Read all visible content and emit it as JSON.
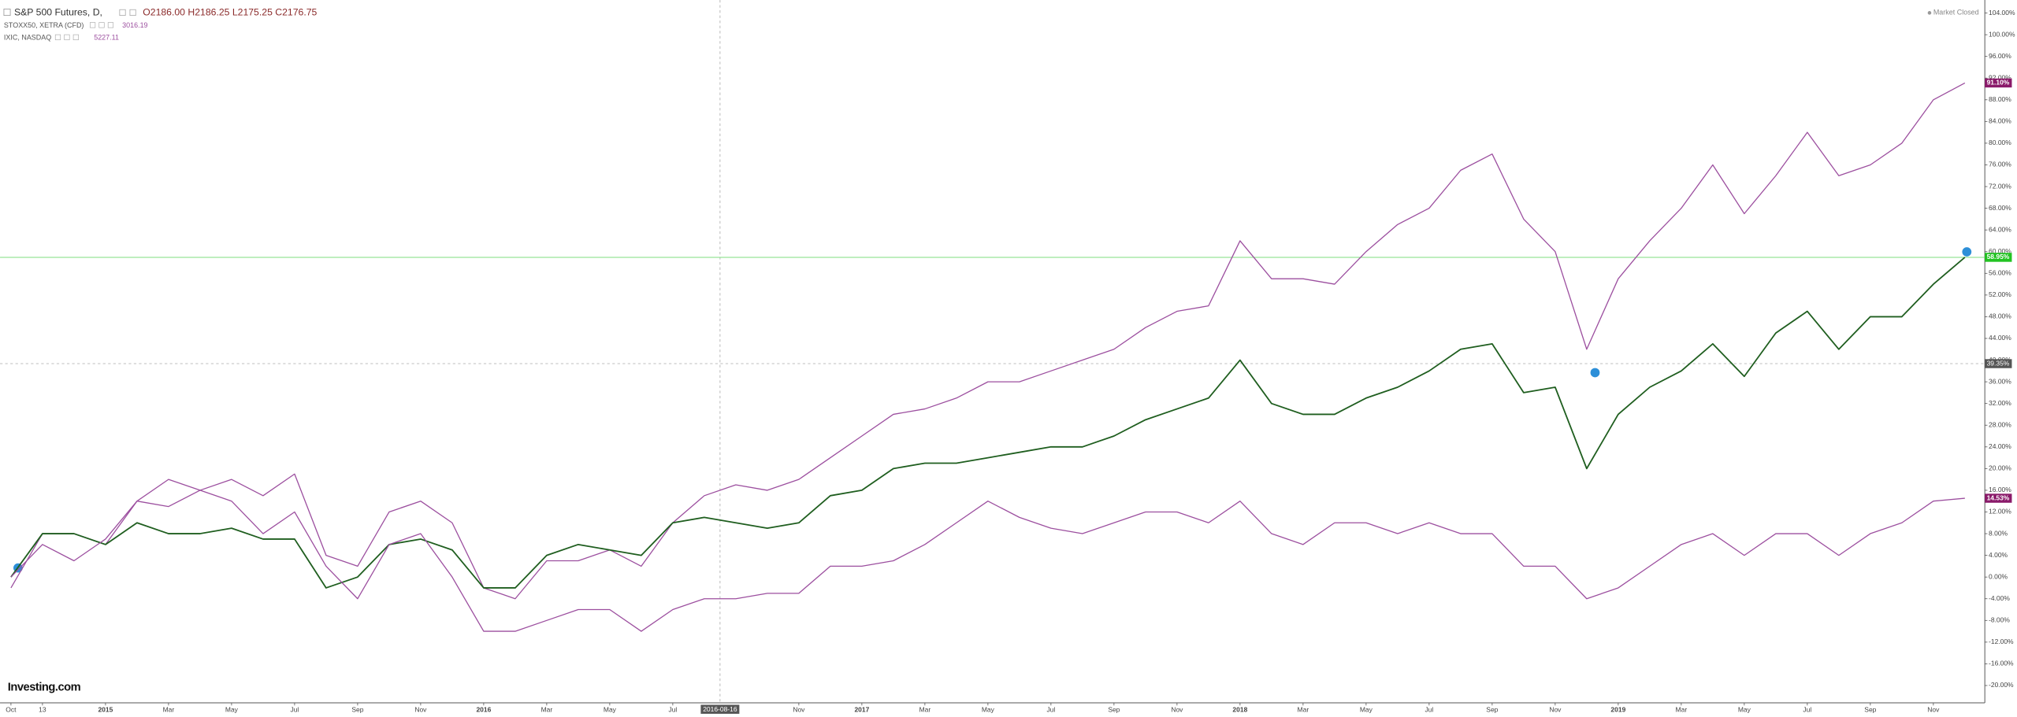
{
  "chart_data": {
    "type": "line",
    "legend": [
      {
        "name": "S&P 500 Futures, D,",
        "quote": "O2186.00 H2186.25 L2175.25 C2176.75"
      },
      {
        "name": "STOXX50, XETRA (CFD)",
        "quote": "3016.19"
      },
      {
        "name": "IXIC, NASDAQ",
        "quote": "5227.11"
      }
    ],
    "status": "Market Closed",
    "watermark": "Investing.com",
    "x": [
      "2014-10",
      "2014-11",
      "2014-12",
      "2015-01",
      "2015-02",
      "2015-03",
      "2015-04",
      "2015-05",
      "2015-06",
      "2015-07",
      "2015-08",
      "2015-09",
      "2015-10",
      "2015-11",
      "2015-12",
      "2016-01",
      "2016-02",
      "2016-03",
      "2016-04",
      "2016-05",
      "2016-06",
      "2016-07",
      "2016-08",
      "2016-09",
      "2016-10",
      "2016-11",
      "2016-12",
      "2017-01",
      "2017-02",
      "2017-03",
      "2017-04",
      "2017-05",
      "2017-06",
      "2017-07",
      "2017-08",
      "2017-09",
      "2017-10",
      "2017-11",
      "2017-12",
      "2018-01",
      "2018-02",
      "2018-03",
      "2018-04",
      "2018-05",
      "2018-06",
      "2018-07",
      "2018-08",
      "2018-09",
      "2018-10",
      "2018-11",
      "2018-12",
      "2019-01",
      "2019-02",
      "2019-03",
      "2019-04",
      "2019-05",
      "2019-06",
      "2019-07",
      "2019-08",
      "2019-09",
      "2019-10",
      "2019-11",
      "2019-12"
    ],
    "series": [
      {
        "name": "IXIC, NASDAQ",
        "color": "#9c4f9f",
        "last_value_label": "91.10%",
        "label_color": "#8a1a6a",
        "values": [
          -2,
          8,
          8,
          6,
          14,
          13,
          16,
          18,
          15,
          19,
          4,
          2,
          12,
          14,
          10,
          -2,
          -4,
          3,
          3,
          5,
          2,
          10,
          15,
          17,
          16,
          18,
          22,
          26,
          30,
          31,
          33,
          36,
          36,
          38,
          40,
          42,
          46,
          49,
          50,
          62,
          55,
          55,
          54,
          60,
          65,
          68,
          75,
          78,
          66,
          60,
          42,
          55,
          62,
          68,
          76,
          67,
          74,
          82,
          74,
          76,
          80,
          88,
          91.1
        ]
      },
      {
        "name": "S&P 500 Futures, D,",
        "color": "#1f5e1f",
        "last_value_label": "58.95%",
        "label_color": "#22c322",
        "values": [
          0,
          8,
          8,
          6,
          10,
          8,
          8,
          9,
          7,
          7,
          -2,
          0,
          6,
          7,
          5,
          -2,
          -2,
          4,
          6,
          5,
          4,
          10,
          11,
          10,
          9,
          10,
          15,
          16,
          20,
          21,
          21,
          22,
          23,
          24,
          24,
          26,
          29,
          31,
          33,
          40,
          32,
          30,
          30,
          33,
          35,
          38,
          42,
          43,
          34,
          35,
          20,
          30,
          35,
          38,
          43,
          37,
          45,
          49,
          42,
          48,
          48,
          54,
          58.95
        ]
      },
      {
        "name": "STOXX50, XETRA (CFD)",
        "color": "#9c4f9f",
        "last_value_label": "14.53%",
        "label_color": "#8a1a6a",
        "values": [
          0,
          6,
          3,
          7,
          14,
          18,
          16,
          14,
          8,
          12,
          2,
          -4,
          6,
          8,
          0,
          -10,
          -10,
          -8,
          -6,
          -6,
          -10,
          -6,
          -4,
          -4,
          -3,
          -3,
          2,
          2,
          3,
          6,
          10,
          14,
          11,
          9,
          8,
          10,
          12,
          12,
          10,
          14,
          8,
          6,
          10,
          10,
          8,
          10,
          8,
          8,
          2,
          2,
          -4,
          -2,
          2,
          6,
          8,
          4,
          8,
          8,
          4,
          8,
          10,
          14,
          14.53
        ]
      }
    ],
    "xticks": [
      {
        "value": "2014-10",
        "label": "Oct"
      },
      {
        "value": "2014-11",
        "label": "13"
      },
      {
        "value": "2015-01",
        "label": "2015"
      },
      {
        "value": "2015-03",
        "label": "Mar"
      },
      {
        "value": "2015-05",
        "label": "May"
      },
      {
        "value": "2015-07",
        "label": "Jul"
      },
      {
        "value": "2015-09",
        "label": "Sep"
      },
      {
        "value": "2015-11",
        "label": "Nov"
      },
      {
        "value": "2016-01",
        "label": "2016"
      },
      {
        "value": "2016-03",
        "label": "Mar"
      },
      {
        "value": "2016-05",
        "label": "May"
      },
      {
        "value": "2016-07",
        "label": "Jul"
      },
      {
        "value": "2016-11",
        "label": "Nov"
      },
      {
        "value": "2017-01",
        "label": "2017"
      },
      {
        "value": "2017-03",
        "label": "Mar"
      },
      {
        "value": "2017-05",
        "label": "May"
      },
      {
        "value": "2017-07",
        "label": "Jul"
      },
      {
        "value": "2017-09",
        "label": "Sep"
      },
      {
        "value": "2017-11",
        "label": "Nov"
      },
      {
        "value": "2018-01",
        "label": "2018"
      },
      {
        "value": "2018-03",
        "label": "Mar"
      },
      {
        "value": "2018-05",
        "label": "May"
      },
      {
        "value": "2018-07",
        "label": "Jul"
      },
      {
        "value": "2018-09",
        "label": "Sep"
      },
      {
        "value": "2018-11",
        "label": "Nov"
      },
      {
        "value": "2019-01",
        "label": "2019"
      },
      {
        "value": "2019-03",
        "label": "Mar"
      },
      {
        "value": "2019-05",
        "label": "May"
      },
      {
        "value": "2019-07",
        "label": "Jul"
      },
      {
        "value": "2019-09",
        "label": "Sep"
      },
      {
        "value": "2019-11",
        "label": "Nov"
      }
    ],
    "ylim": [
      -23.2,
      106.4
    ],
    "yticks": [
      {
        "value": -20,
        "label": "-20.00%"
      },
      {
        "value": -16,
        "label": "-16.00%"
      },
      {
        "value": -12,
        "label": "-12.00%"
      },
      {
        "value": -8,
        "label": "-8.00%"
      },
      {
        "value": -4,
        "label": "-4.00%"
      },
      {
        "value": 0,
        "label": "0.00%"
      },
      {
        "value": 4,
        "label": "4.00%"
      },
      {
        "value": 8,
        "label": "8.00%"
      },
      {
        "value": 12,
        "label": "12.00%"
      },
      {
        "value": 16,
        "label": "16.00%"
      },
      {
        "value": 20,
        "label": "20.00%"
      },
      {
        "value": 24,
        "label": "24.00%"
      },
      {
        "value": 28,
        "label": "28.00%"
      },
      {
        "value": 32,
        "label": "32.00%"
      },
      {
        "value": 36,
        "label": "36.00%"
      },
      {
        "value": 40,
        "label": "40.00%"
      },
      {
        "value": 44,
        "label": "44.00%"
      },
      {
        "value": 48,
        "label": "48.00%"
      },
      {
        "value": 52,
        "label": "52.00%"
      },
      {
        "value": 56,
        "label": "56.00%"
      },
      {
        "value": 60,
        "label": "60.00%"
      },
      {
        "value": 64,
        "label": "64.00%"
      },
      {
        "value": 68,
        "label": "68.00%"
      },
      {
        "value": 72,
        "label": "72.00%"
      },
      {
        "value": 76,
        "label": "76.00%"
      },
      {
        "value": 80,
        "label": "80.00%"
      },
      {
        "value": 84,
        "label": "84.00%"
      },
      {
        "value": 88,
        "label": "88.00%"
      },
      {
        "value": 92,
        "label": "92.00%"
      },
      {
        "value": 96,
        "label": "96.00%"
      },
      {
        "value": 100,
        "label": "100.00%"
      },
      {
        "value": 104,
        "label": "104.00%"
      }
    ],
    "crosshair": {
      "x_label": "2016-08-16",
      "y": 39.35,
      "y_label": "39.35%"
    }
  }
}
